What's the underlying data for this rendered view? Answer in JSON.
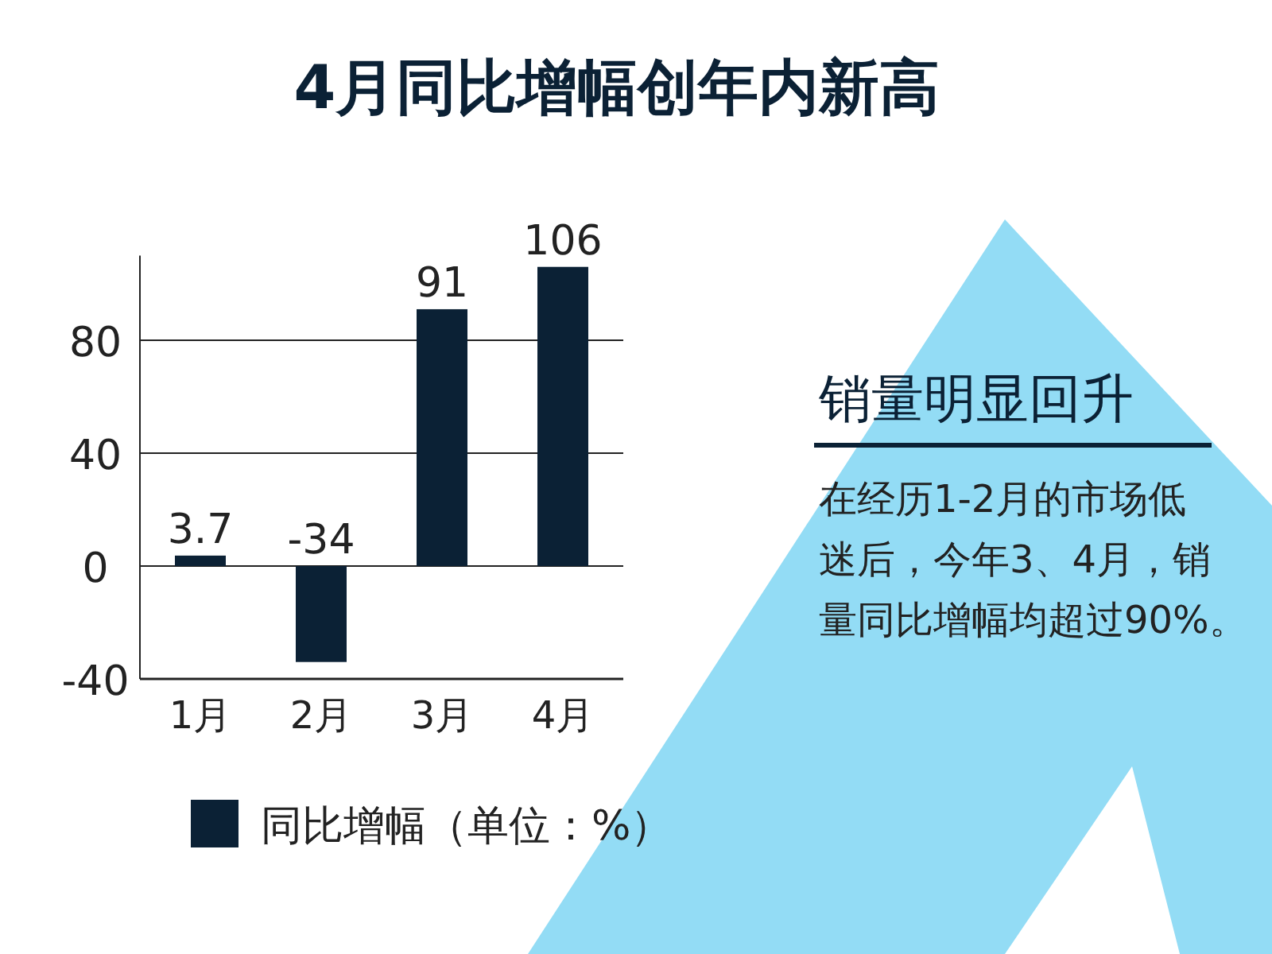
{
  "chart_data": {
    "type": "bar",
    "title": "4月同比增幅创年内新高",
    "categories": [
      "1月",
      "2月",
      "3月",
      "4月"
    ],
    "series": [
      {
        "name": "同比增幅（单位：%）",
        "color": "#0b2135",
        "values": [
          3.7,
          -34,
          91,
          106
        ]
      }
    ],
    "ylim": [
      -40,
      110
    ],
    "yticks": [
      -40,
      0,
      40,
      80
    ],
    "grid": "y",
    "data_labels": true,
    "legend": "bottom",
    "annotations": [
      "销量明显回升",
      "在经历1-2月的市场低迷后，今年3、4月，销量同比增幅均超过90%。"
    ]
  }
}
